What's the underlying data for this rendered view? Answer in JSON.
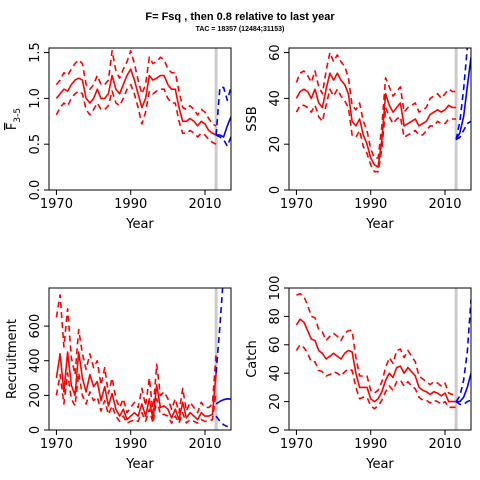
{
  "figure": {
    "title": "F= Fsq , then 0.8  relative to last year",
    "subtitle": "TAC = 18357 (12484;31153)",
    "vline_year": 2013,
    "colors": {
      "history": "#ff0000",
      "projection": "#0000ff",
      "vline": "#cccccc"
    }
  },
  "chart_data": [
    {
      "type": "line",
      "panel": "F",
      "ylabel": "F",
      "ylabel_sub": "3-5",
      "xlabel": "Year",
      "xlim": [
        1968,
        2017
      ],
      "ylim": [
        0,
        1.55
      ],
      "xticks": [
        1970,
        1990,
        2010
      ],
      "yticks": [
        0.0,
        0.5,
        1.0,
        1.5
      ],
      "ytick_labels": [
        "0.0",
        "0.5",
        "1.0",
        "1.5"
      ],
      "history": {
        "x": [
          1970,
          1971,
          1972,
          1973,
          1974,
          1975,
          1976,
          1977,
          1978,
          1979,
          1980,
          1981,
          1982,
          1983,
          1984,
          1985,
          1986,
          1987,
          1988,
          1989,
          1990,
          1991,
          1992,
          1993,
          1994,
          1995,
          1996,
          1997,
          1998,
          1999,
          2000,
          2001,
          2002,
          2003,
          2004,
          2005,
          2006,
          2007,
          2008,
          2009,
          2010,
          2011,
          2012,
          2013
        ],
        "median": [
          1.0,
          1.05,
          1.1,
          1.08,
          1.15,
          1.2,
          1.22,
          1.2,
          1.0,
          0.95,
          1.0,
          1.1,
          1.0,
          1.0,
          1.05,
          1.25,
          1.1,
          1.05,
          1.15,
          1.25,
          1.32,
          1.2,
          1.05,
          0.9,
          1.0,
          1.25,
          1.2,
          1.22,
          1.25,
          1.25,
          1.15,
          1.1,
          1.1,
          0.9,
          0.75,
          0.75,
          0.78,
          0.75,
          0.7,
          0.75,
          0.72,
          0.65,
          0.62,
          0.6
        ],
        "lower": [
          0.82,
          0.9,
          0.95,
          0.92,
          1.0,
          1.05,
          1.08,
          1.05,
          0.88,
          0.82,
          0.88,
          0.95,
          0.88,
          0.88,
          0.92,
          1.08,
          0.95,
          0.92,
          1.0,
          1.1,
          1.15,
          1.05,
          0.9,
          0.72,
          0.85,
          1.08,
          1.05,
          1.08,
          1.1,
          1.1,
          1.0,
          0.95,
          0.95,
          0.75,
          0.62,
          0.62,
          0.65,
          0.62,
          0.58,
          0.62,
          0.6,
          0.55,
          0.52,
          0.5
        ],
        "upper": [
          1.15,
          1.2,
          1.28,
          1.25,
          1.32,
          1.38,
          1.42,
          1.38,
          1.15,
          1.1,
          1.15,
          1.25,
          1.15,
          1.15,
          1.2,
          1.52,
          1.3,
          1.22,
          1.32,
          1.4,
          1.52,
          1.38,
          1.2,
          1.05,
          1.15,
          1.45,
          1.38,
          1.4,
          1.45,
          1.42,
          1.32,
          1.28,
          1.28,
          1.08,
          0.9,
          0.88,
          0.92,
          0.88,
          0.82,
          0.88,
          0.85,
          0.78,
          0.72,
          0.7
        ]
      },
      "projection": {
        "x": [
          2013,
          2014,
          2015,
          2016,
          2017
        ],
        "median": [
          0.6,
          0.6,
          0.58,
          0.7,
          0.8
        ],
        "lower": [
          0.6,
          0.58,
          0.55,
          0.48,
          0.58
        ],
        "upper": [
          0.6,
          1.12,
          1.12,
          0.98,
          1.12
        ]
      }
    },
    {
      "type": "line",
      "panel": "SSB",
      "ylabel": "SSB",
      "xlabel": "Year",
      "xlim": [
        1968,
        2017
      ],
      "ylim": [
        0,
        62
      ],
      "xticks": [
        1970,
        1990,
        2010
      ],
      "yticks": [
        0,
        20,
        40,
        60
      ],
      "ytick_labels": [
        "0",
        "20",
        "40",
        "60"
      ],
      "history": {
        "x": [
          1970,
          1971,
          1972,
          1973,
          1974,
          1975,
          1976,
          1977,
          1978,
          1979,
          1980,
          1981,
          1982,
          1983,
          1984,
          1985,
          1986,
          1987,
          1988,
          1989,
          1990,
          1991,
          1992,
          1993,
          1994,
          1995,
          1996,
          1997,
          1998,
          1999,
          2000,
          2001,
          2002,
          2003,
          2004,
          2005,
          2006,
          2007,
          2008,
          2009,
          2010,
          2011,
          2012,
          2013
        ],
        "median": [
          40,
          43,
          44,
          43,
          40,
          44,
          38,
          36,
          44,
          51,
          48,
          51,
          48,
          46,
          42,
          30,
          28,
          31,
          24,
          20,
          14,
          11,
          10,
          22,
          42,
          37,
          34,
          36,
          38,
          28,
          29,
          30,
          31,
          28,
          29,
          30,
          33,
          34,
          35,
          34,
          35,
          37,
          36,
          36
        ],
        "lower": [
          34,
          37,
          37,
          36,
          34,
          37,
          32,
          30,
          37,
          44,
          41,
          44,
          41,
          39,
          36,
          24,
          23,
          26,
          19,
          16,
          11,
          8,
          8,
          18,
          36,
          32,
          29,
          31,
          32,
          23,
          24,
          25,
          26,
          24,
          24,
          26,
          28,
          28,
          30,
          29,
          29,
          31,
          31,
          31
        ],
        "upper": [
          47,
          51,
          52,
          50,
          47,
          52,
          45,
          42,
          52,
          60,
          56,
          59,
          56,
          54,
          49,
          37,
          35,
          38,
          30,
          26,
          18,
          14,
          14,
          28,
          49,
          45,
          41,
          43,
          45,
          34,
          36,
          37,
          38,
          34,
          35,
          36,
          40,
          41,
          42,
          40,
          42,
          44,
          43,
          43
        ]
      },
      "projection": {
        "x": [
          2013,
          2014,
          2015,
          2016,
          2017
        ],
        "median": [
          22,
          25,
          32,
          45,
          58
        ],
        "lower": [
          22,
          23,
          26,
          29,
          30
        ],
        "upper": [
          22,
          30,
          44,
          62,
          75
        ]
      }
    },
    {
      "type": "line",
      "panel": "Recruitment",
      "ylabel": "Recruitment",
      "xlabel": "Year",
      "xlim": [
        1968,
        2017
      ],
      "ylim": [
        0,
        820
      ],
      "xticks": [
        1970,
        1990,
        2010
      ],
      "yticks": [
        0,
        200,
        400,
        600
      ],
      "ytick_labels": [
        "0",
        "200",
        "400",
        "600"
      ],
      "history": {
        "x": [
          1970,
          1971,
          1972,
          1973,
          1974,
          1975,
          1976,
          1977,
          1978,
          1979,
          1980,
          1981,
          1982,
          1983,
          1984,
          1985,
          1986,
          1987,
          1988,
          1989,
          1990,
          1991,
          1992,
          1993,
          1994,
          1995,
          1996,
          1997,
          1998,
          1999,
          2000,
          2001,
          2002,
          2003,
          2004,
          2005,
          2006,
          2007,
          2008,
          2009,
          2010,
          2011,
          2012,
          2013
        ],
        "median": [
          300,
          440,
          220,
          450,
          260,
          200,
          450,
          300,
          220,
          320,
          250,
          280,
          170,
          250,
          140,
          210,
          120,
          80,
          120,
          60,
          80,
          100,
          80,
          150,
          80,
          180,
          60,
          260,
          130,
          140,
          120,
          70,
          120,
          60,
          160,
          70,
          100,
          80,
          60,
          100,
          80,
          80,
          90,
          330
        ],
        "lower": [
          200,
          320,
          150,
          330,
          180,
          140,
          330,
          200,
          150,
          220,
          170,
          190,
          110,
          170,
          90,
          140,
          80,
          50,
          80,
          40,
          50,
          60,
          50,
          100,
          50,
          120,
          40,
          180,
          90,
          90,
          80,
          40,
          80,
          40,
          100,
          40,
          60,
          50,
          40,
          60,
          50,
          50,
          60,
          220
        ],
        "upper": [
          650,
          780,
          480,
          700,
          420,
          320,
          580,
          440,
          350,
          440,
          360,
          400,
          260,
          360,
          210,
          300,
          180,
          130,
          180,
          100,
          130,
          160,
          130,
          240,
          140,
          300,
          100,
          380,
          200,
          220,
          180,
          120,
          180,
          100,
          240,
          110,
          160,
          130,
          100,
          160,
          130,
          130,
          150,
          440
        ]
      },
      "projection": {
        "x": [
          2013,
          2014,
          2015,
          2016,
          2017
        ],
        "median": [
          150,
          165,
          175,
          180,
          178
        ],
        "lower": [
          80,
          50,
          30,
          20,
          15
        ],
        "upper": [
          330,
          600,
          900,
          1200,
          1400
        ]
      }
    },
    {
      "type": "line",
      "panel": "Catch",
      "ylabel": "Catch",
      "xlabel": "Year",
      "xlim": [
        1968,
        2017
      ],
      "ylim": [
        0,
        100
      ],
      "xticks": [
        1970,
        1990,
        2010
      ],
      "yticks": [
        0,
        20,
        40,
        60,
        80,
        100
      ],
      "ytick_labels": [
        "0",
        "20",
        "40",
        "60",
        "80",
        "100"
      ],
      "history": {
        "x": [
          1970,
          1971,
          1972,
          1973,
          1974,
          1975,
          1976,
          1977,
          1978,
          1979,
          1980,
          1981,
          1982,
          1983,
          1984,
          1985,
          1986,
          1987,
          1988,
          1989,
          1990,
          1991,
          1992,
          1993,
          1994,
          1995,
          1996,
          1997,
          1998,
          1999,
          2000,
          2001,
          2002,
          2003,
          2004,
          2005,
          2006,
          2007,
          2008,
          2009,
          2010,
          2011,
          2012,
          2013
        ],
        "median": [
          74,
          78,
          76,
          70,
          64,
          63,
          56,
          54,
          50,
          52,
          54,
          52,
          50,
          54,
          56,
          55,
          40,
          30,
          30,
          30,
          22,
          20,
          22,
          27,
          35,
          40,
          37,
          44,
          45,
          40,
          44,
          41,
          38,
          30,
          28,
          27,
          25,
          27,
          26,
          24,
          26,
          20,
          20,
          20
        ],
        "lower": [
          56,
          60,
          58,
          54,
          48,
          48,
          42,
          41,
          38,
          39,
          41,
          40,
          38,
          41,
          43,
          42,
          30,
          22,
          23,
          23,
          17,
          15,
          17,
          21,
          27,
          31,
          28,
          34,
          35,
          31,
          34,
          31,
          29,
          23,
          21,
          21,
          19,
          21,
          20,
          18,
          20,
          16,
          16,
          16
        ],
        "upper": [
          95,
          96,
          94,
          88,
          80,
          79,
          71,
          69,
          63,
          66,
          68,
          66,
          63,
          68,
          70,
          70,
          51,
          38,
          38,
          38,
          28,
          26,
          28,
          34,
          44,
          51,
          47,
          56,
          57,
          51,
          56,
          52,
          48,
          38,
          36,
          34,
          32,
          34,
          33,
          31,
          33,
          26,
          25,
          25
        ]
      },
      "projection": {
        "x": [
          2013,
          2014,
          2015,
          2016,
          2017
        ],
        "median": [
          20,
          20,
          23,
          30,
          40
        ],
        "lower": [
          20,
          18,
          18,
          20,
          21
        ],
        "upper": [
          20,
          24,
          35,
          55,
          92
        ]
      }
    }
  ]
}
